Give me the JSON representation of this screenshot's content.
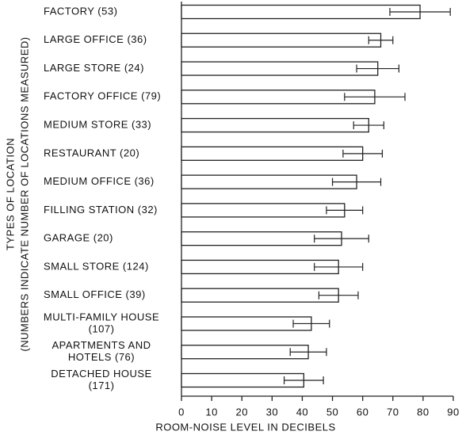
{
  "chart_data": {
    "type": "barh",
    "xlabel": "ROOM-NOISE LEVEL IN DECIBELS",
    "ylabel": [
      "TYPES OF LOCATION",
      "(NUMBERS INDICATE NUMBER OF LOCATIONS MEASURED)"
    ],
    "categories": [
      [
        "FACTORY (53)"
      ],
      [
        "LARGE OFFICE (36)"
      ],
      [
        "LARGE STORE (24)"
      ],
      [
        "FACTORY OFFICE (79)"
      ],
      [
        "MEDIUM STORE (33)"
      ],
      [
        "RESTAURANT (20)"
      ],
      [
        "MEDIUM OFFICE (36)"
      ],
      [
        "FILLING STATION (32)"
      ],
      [
        "GARAGE (20)"
      ],
      [
        "SMALL STORE (124)"
      ],
      [
        "SMALL OFFICE (39)"
      ],
      [
        "MULTI-FAMILY HOUSE",
        "(107)"
      ],
      [
        "APARTMENTS AND",
        "HOTELS (76)"
      ],
      [
        "DETACHED HOUSE",
        "(171)"
      ]
    ],
    "values": [
      79,
      66,
      65,
      64,
      62,
      60,
      58,
      54,
      53,
      52,
      52,
      43,
      42,
      40.5
    ],
    "errors": [
      10,
      4,
      7,
      10,
      5,
      6.5,
      8,
      6,
      9,
      8,
      6.5,
      6,
      6,
      6.5
    ],
    "color": "#ffffff",
    "xlim": [
      0,
      90
    ],
    "xticks": [
      0,
      10,
      20,
      30,
      40,
      50,
      60,
      70,
      80,
      90
    ]
  }
}
